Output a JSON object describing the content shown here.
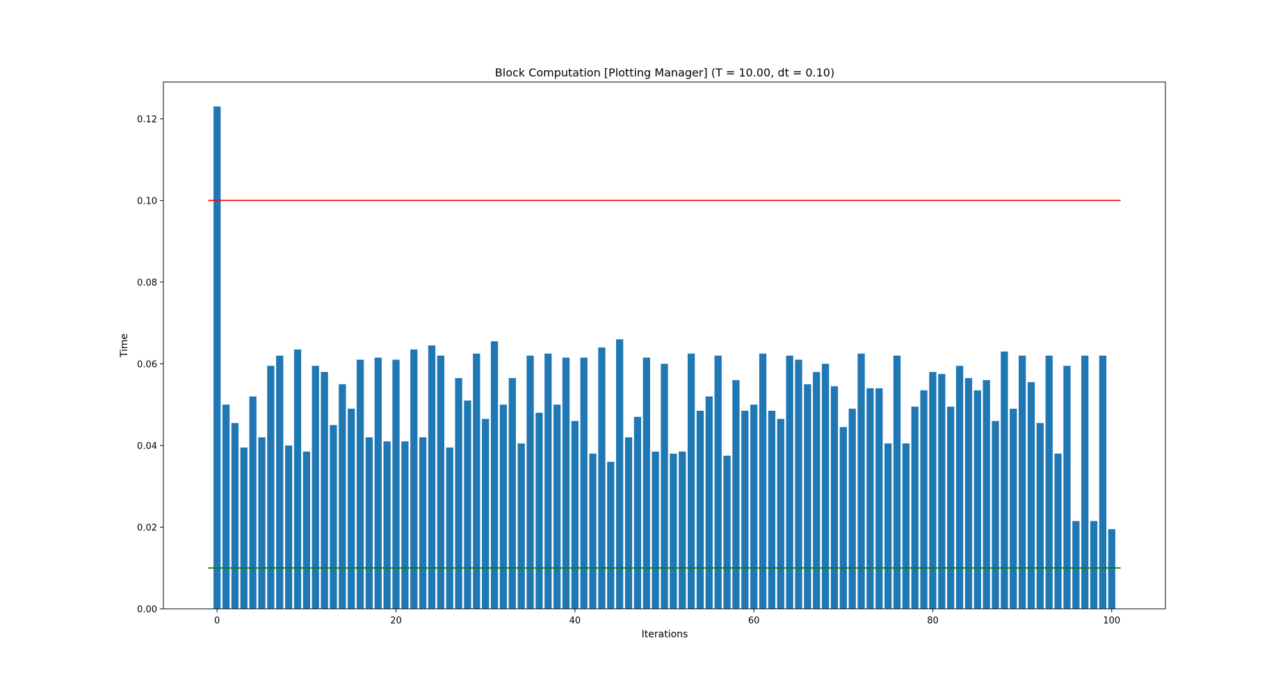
{
  "chart_data": {
    "type": "bar",
    "title": "Block Computation [Plotting Manager] (T = 10.00, dt = 0.10)",
    "xlabel": "Iterations",
    "ylabel": "Time",
    "xlim": [
      -6,
      106
    ],
    "ylim": [
      0,
      0.129
    ],
    "xticks": [
      0,
      20,
      40,
      60,
      80,
      100
    ],
    "xtick_labels": [
      "0",
      "20",
      "40",
      "60",
      "80",
      "100"
    ],
    "yticks": [
      0,
      0.02,
      0.04,
      0.06,
      0.08,
      0.1,
      0.12
    ],
    "ytick_labels": [
      "0.00",
      "0.02",
      "0.04",
      "0.06",
      "0.08",
      "0.10",
      "0.12"
    ],
    "bar_color": "#1f77b4",
    "grid": false,
    "x": [
      0,
      1,
      2,
      3,
      4,
      5,
      6,
      7,
      8,
      9,
      10,
      11,
      12,
      13,
      14,
      15,
      16,
      17,
      18,
      19,
      20,
      21,
      22,
      23,
      24,
      25,
      26,
      27,
      28,
      29,
      30,
      31,
      32,
      33,
      34,
      35,
      36,
      37,
      38,
      39,
      40,
      41,
      42,
      43,
      44,
      45,
      46,
      47,
      48,
      49,
      50,
      51,
      52,
      53,
      54,
      55,
      56,
      57,
      58,
      59,
      60,
      61,
      62,
      63,
      64,
      65,
      66,
      67,
      68,
      69,
      70,
      71,
      72,
      73,
      74,
      75,
      76,
      77,
      78,
      79,
      80,
      81,
      82,
      83,
      84,
      85,
      86,
      87,
      88,
      89,
      90,
      91,
      92,
      93,
      94,
      95,
      96,
      97,
      98,
      99,
      100
    ],
    "values": [
      0.123,
      0.05,
      0.0455,
      0.0395,
      0.052,
      0.042,
      0.0595,
      0.062,
      0.04,
      0.0635,
      0.0385,
      0.0595,
      0.058,
      0.045,
      0.055,
      0.049,
      0.061,
      0.042,
      0.0615,
      0.041,
      0.061,
      0.041,
      0.0635,
      0.042,
      0.0645,
      0.062,
      0.0395,
      0.0565,
      0.051,
      0.0625,
      0.0465,
      0.0655,
      0.05,
      0.0565,
      0.0405,
      0.062,
      0.048,
      0.0625,
      0.05,
      0.0615,
      0.046,
      0.0615,
      0.038,
      0.064,
      0.036,
      0.066,
      0.042,
      0.047,
      0.0615,
      0.0385,
      0.06,
      0.038,
      0.0385,
      0.0625,
      0.0485,
      0.052,
      0.062,
      0.0375,
      0.056,
      0.0485,
      0.05,
      0.0625,
      0.0485,
      0.0465,
      0.062,
      0.061,
      0.055,
      0.058,
      0.06,
      0.0545,
      0.0445,
      0.049,
      0.0625,
      0.054,
      0.054,
      0.0405,
      0.062,
      0.0405,
      0.0495,
      0.0535,
      0.058,
      0.0575,
      0.0495,
      0.0595,
      0.0565,
      0.0535,
      0.056,
      0.046,
      0.063,
      0.049,
      0.062,
      0.0555,
      0.0455,
      0.062,
      0.038,
      0.0595,
      0.0215,
      0.062,
      0.0215,
      0.062,
      0.0195
    ],
    "hlines": [
      {
        "y": 0.1,
        "color": "#ff0000",
        "xmin": -1,
        "xmax": 101
      },
      {
        "y": 0.01,
        "color": "#008000",
        "xmin": -1,
        "xmax": 101
      }
    ]
  }
}
